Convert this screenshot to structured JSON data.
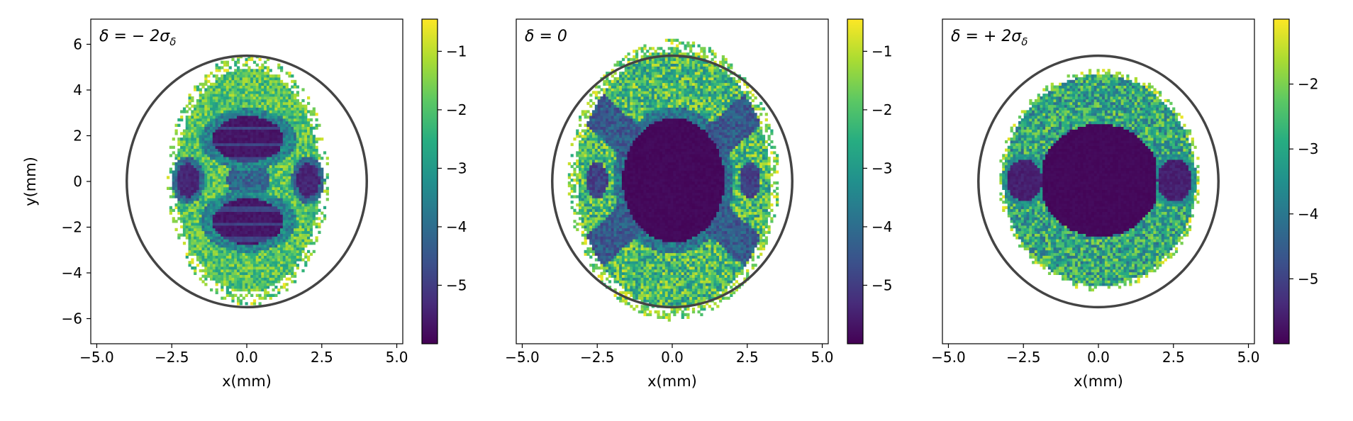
{
  "chart_data": [
    {
      "type": "heatmap",
      "panel_label": "δ = − 2σ",
      "panel_label_sub": "δ",
      "xlabel": "x(mm)",
      "ylabel": "y(mm)",
      "xlim": [
        -5.2,
        5.2
      ],
      "ylim": [
        -7.1,
        7.1
      ],
      "x_ticks": [
        -5.0,
        -2.5,
        0.0,
        2.5,
        5.0
      ],
      "x_tick_labels": [
        "−5.0",
        "−2.5",
        "0.0",
        "2.5",
        "5.0"
      ],
      "y_ticks": [
        6,
        4,
        2,
        0,
        -2,
        -4,
        -6
      ],
      "y_tick_labels": [
        "6",
        "4",
        "2",
        "0",
        "−2",
        "−4",
        "−6"
      ],
      "colorbar": {
        "range": [
          -6.0,
          -0.45
        ],
        "ticks": [
          -1,
          -2,
          -3,
          -4,
          -5
        ],
        "tick_labels": [
          "−1",
          "−2",
          "−3",
          "−4",
          "−5"
        ]
      },
      "boundary_ellipse": {
        "rx": 4.0,
        "ry": 5.5
      },
      "distribution": "delta_minus"
    },
    {
      "type": "heatmap",
      "panel_label": "δ = 0",
      "panel_label_sub": "",
      "xlabel": "x(mm)",
      "ylabel": "",
      "xlim": [
        -5.2,
        5.2
      ],
      "ylim": [
        -7.1,
        7.1
      ],
      "x_ticks": [
        -5.0,
        -2.5,
        0.0,
        2.5,
        5.0
      ],
      "x_tick_labels": [
        "−5.0",
        "−2.5",
        "0.0",
        "2.5",
        "5.0"
      ],
      "y_ticks": [],
      "y_tick_labels": [],
      "colorbar": {
        "range": [
          -6.0,
          -0.45
        ],
        "ticks": [
          -1,
          -2,
          -3,
          -4,
          -5
        ],
        "tick_labels": [
          "−1",
          "−2",
          "−3",
          "−4",
          "−5"
        ]
      },
      "boundary_ellipse": {
        "rx": 4.0,
        "ry": 5.5
      },
      "distribution": "delta_zero"
    },
    {
      "type": "heatmap",
      "panel_label": "δ = + 2σ",
      "panel_label_sub": "δ",
      "xlabel": "x(mm)",
      "ylabel": "",
      "xlim": [
        -5.2,
        5.2
      ],
      "ylim": [
        -7.1,
        7.1
      ],
      "x_ticks": [
        -5.0,
        -2.5,
        0.0,
        2.5,
        5.0
      ],
      "x_tick_labels": [
        "−5.0",
        "−2.5",
        "0.0",
        "2.5",
        "5.0"
      ],
      "y_ticks": [],
      "y_tick_labels": [],
      "colorbar": {
        "range": [
          -6.0,
          -1.0
        ],
        "ticks": [
          -2,
          -3,
          -4,
          -5
        ],
        "tick_labels": [
          "−2",
          "−3",
          "−4",
          "−5"
        ]
      },
      "boundary_ellipse": {
        "rx": 4.0,
        "ry": 5.5
      },
      "distribution": "delta_plus"
    }
  ],
  "colors": {
    "colormap": [
      "#440154",
      "#472c7a",
      "#3b518b",
      "#2c718e",
      "#21908d",
      "#27ad81",
      "#5cc863",
      "#aadc32",
      "#fde725"
    ],
    "ellipse": "#444444",
    "axis": "#000000"
  }
}
